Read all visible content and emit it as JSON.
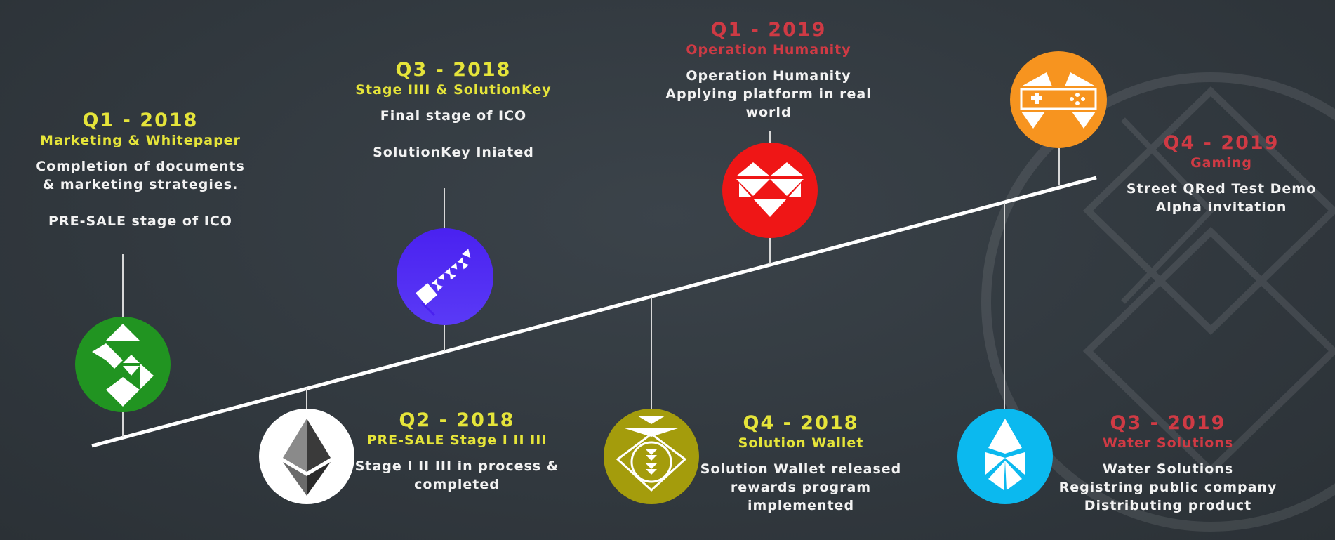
{
  "milestones": [
    {
      "quarter": "Q1 - 2018",
      "title": "Marketing & Whitepaper",
      "lines": [
        "Completion of documents",
        "& marketing strategies.",
        "",
        "PRE-SALE stage of ICO"
      ],
      "icon": "solution-s-icon",
      "color": "#219421",
      "accent": "#e5e43a"
    },
    {
      "quarter": "Q2 - 2018",
      "title": "PRE-SALE Stage I II III",
      "lines": [
        "Stage I II III in process &",
        "completed"
      ],
      "icon": "ethereum-icon",
      "color": "#ffffff",
      "accent": "#e5e43a"
    },
    {
      "quarter": "Q3 - 2018",
      "title": "Stage IIII & SolutionKey",
      "lines": [
        "Final stage of ICO",
        "",
        "SolutionKey Iniated"
      ],
      "icon": "key-icon",
      "color": "#4b29f0",
      "accent": "#e5e43a"
    },
    {
      "quarter": "Q4 - 2018",
      "title": "Solution Wallet",
      "lines": [
        "Solution Wallet released",
        "rewards program",
        "implemented"
      ],
      "icon": "wallet-icon",
      "color": "#a49c0c",
      "accent": "#e5e43a"
    },
    {
      "quarter": "Q1 - 2019",
      "title": "Operation Humanity",
      "lines": [
        "Operation Humanity",
        "Applying platform in real",
        "world"
      ],
      "icon": "heart-icon",
      "color": "#ef1616",
      "accent": "#cf3a44"
    },
    {
      "quarter": "Q3 - 2019",
      "title": "Water Solutions",
      "lines": [
        "Water Solutions",
        "Registring public company",
        "Distributing product"
      ],
      "icon": "water-drop-icon",
      "color": "#0bb9ef",
      "accent": "#cf3a44"
    },
    {
      "quarter": "Q4 - 2019",
      "title": "Gaming",
      "lines": [
        "Street QRed Test Demo",
        "Alpha invitation"
      ],
      "icon": "gamepad-icon",
      "color": "#f7941f",
      "accent": "#cf3a44"
    }
  ],
  "colors": {
    "background": "#31383e",
    "timeline": "#ffffff",
    "yellow": "#e5e43a",
    "red": "#cf3a44"
  }
}
